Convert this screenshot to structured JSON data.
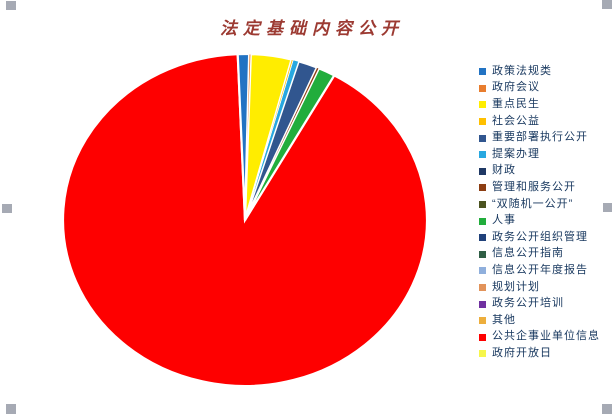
{
  "chart_data": {
    "type": "pie",
    "title": "法定基础内容公开",
    "title_color": "#9c3a32",
    "legend_position": "right",
    "grid": false,
    "start_angle_deg": -2.3,
    "slice_border_color": "#ffffff",
    "slices": [
      {
        "name": "政策法规类",
        "color": "#2273c3",
        "value": 1.0
      },
      {
        "name": "政府会议",
        "color": "#e87d2e",
        "value": 0.15
      },
      {
        "name": "重点民生",
        "color": "#ffed00",
        "value": 3.6
      },
      {
        "name": "社会公益",
        "color": "#ffc000",
        "value": 0.15
      },
      {
        "name": "提案办理",
        "color": "#28a8e0",
        "value": 0.5
      },
      {
        "name": "重要部署执行公开",
        "color": "#31568f",
        "value": 1.7
      },
      {
        "name": "管理和服务公开",
        "color": "#8c3d12",
        "value": 0.2
      },
      {
        "name": "人事",
        "color": "#21ad3c",
        "value": 1.5
      },
      {
        "name": "公共企事业单位信息",
        "color": "#fe0000",
        "value": 91.2
      }
    ],
    "legend": [
      {
        "label": "政策法规类",
        "color": "#2273c3"
      },
      {
        "label": "政府会议",
        "color": "#e87d2e"
      },
      {
        "label": "重点民生",
        "color": "#ffed00"
      },
      {
        "label": "社会公益",
        "color": "#ffc000"
      },
      {
        "label": "重要部署执行公开",
        "color": "#31568f"
      },
      {
        "label": "提案办理",
        "color": "#28a8e0"
      },
      {
        "label": "财政",
        "color": "#1f3864"
      },
      {
        "label": "管理和服务公开",
        "color": "#8c3d12"
      },
      {
        "label": "“双随机一公开”",
        "color": "#4b5320"
      },
      {
        "label": "人事",
        "color": "#21ad3c"
      },
      {
        "label": "政务公开组织管理",
        "color": "#20417a"
      },
      {
        "label": "信息公开指南",
        "color": "#2f5e45"
      },
      {
        "label": "信息公开年度报告",
        "color": "#8fafdc"
      },
      {
        "label": "规划计划",
        "color": "#e2935a"
      },
      {
        "label": "政务公开培训",
        "color": "#7030a0"
      },
      {
        "label": "其他",
        "color": "#edae3c"
      },
      {
        "label": "公共企事业单位信息",
        "color": "#fe0000"
      },
      {
        "label": "政府开放日",
        "color": "#f6f64b"
      }
    ]
  }
}
